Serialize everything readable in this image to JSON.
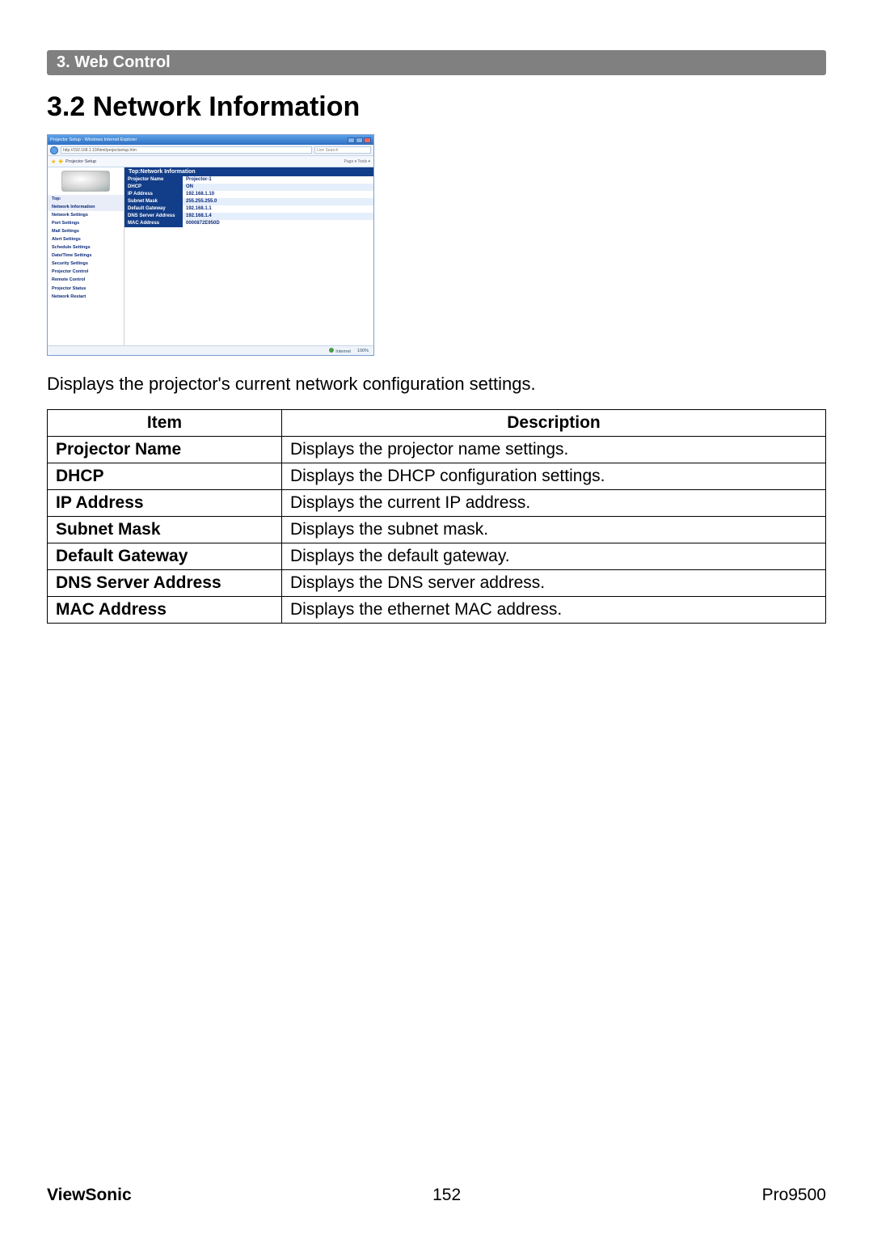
{
  "section_bar": "3. Web Control",
  "heading": "3.2 Network Information",
  "caption": "Displays the projector's current network configuration settings.",
  "screenshot": {
    "window_title": "Projector Setup - Windows Internet Explorer",
    "url": "http://192.168.1.10/html/projectsetup.htm",
    "search_placeholder": "Live Search",
    "fav_tab": "Projector Setup",
    "toolbar_right": "Page ▾  Tools ▾",
    "panel_header": "Top:Network Information",
    "sidebar": [
      "Top:",
      "Network Information",
      "Network Settings",
      "Port Settings",
      "Mail Settings",
      "Alert Settings",
      "Schedule Settings",
      "Date/Time Settings",
      "Security Settings",
      "Projector Control",
      "Remote Control",
      "Projector Status",
      "Network Restart"
    ],
    "rows": [
      {
        "k": "Projector Name",
        "v": "Projector-1"
      },
      {
        "k": "DHCP",
        "v": "ON"
      },
      {
        "k": "IP Address",
        "v": "192.168.1.10"
      },
      {
        "k": "Subnet Mask",
        "v": "255.255.255.0"
      },
      {
        "k": "Default Gateway",
        "v": "192.168.1.1"
      },
      {
        "k": "DNS Server Address",
        "v": "192.168.1.4"
      },
      {
        "k": "MAC Address",
        "v": "0000872E950D"
      }
    ],
    "status_internet": "Internet",
    "status_zoom": "100%"
  },
  "table": {
    "headers": {
      "item": "Item",
      "desc": "Description"
    },
    "rows": [
      {
        "k": "Projector Name",
        "v": "Displays the projector name settings."
      },
      {
        "k": "DHCP",
        "v": "Displays the DHCP configuration settings."
      },
      {
        "k": "IP Address",
        "v": "Displays the current IP address."
      },
      {
        "k": "Subnet Mask",
        "v": "Displays the subnet mask."
      },
      {
        "k": "Default Gateway",
        "v": "Displays the default gateway."
      },
      {
        "k": "DNS Server Address",
        "v": "Displays the DNS server address."
      },
      {
        "k": "MAC Address",
        "v": "Displays the ethernet MAC address."
      }
    ]
  },
  "footer": {
    "brand": "ViewSonic",
    "page": "152",
    "model": "Pro9500"
  }
}
